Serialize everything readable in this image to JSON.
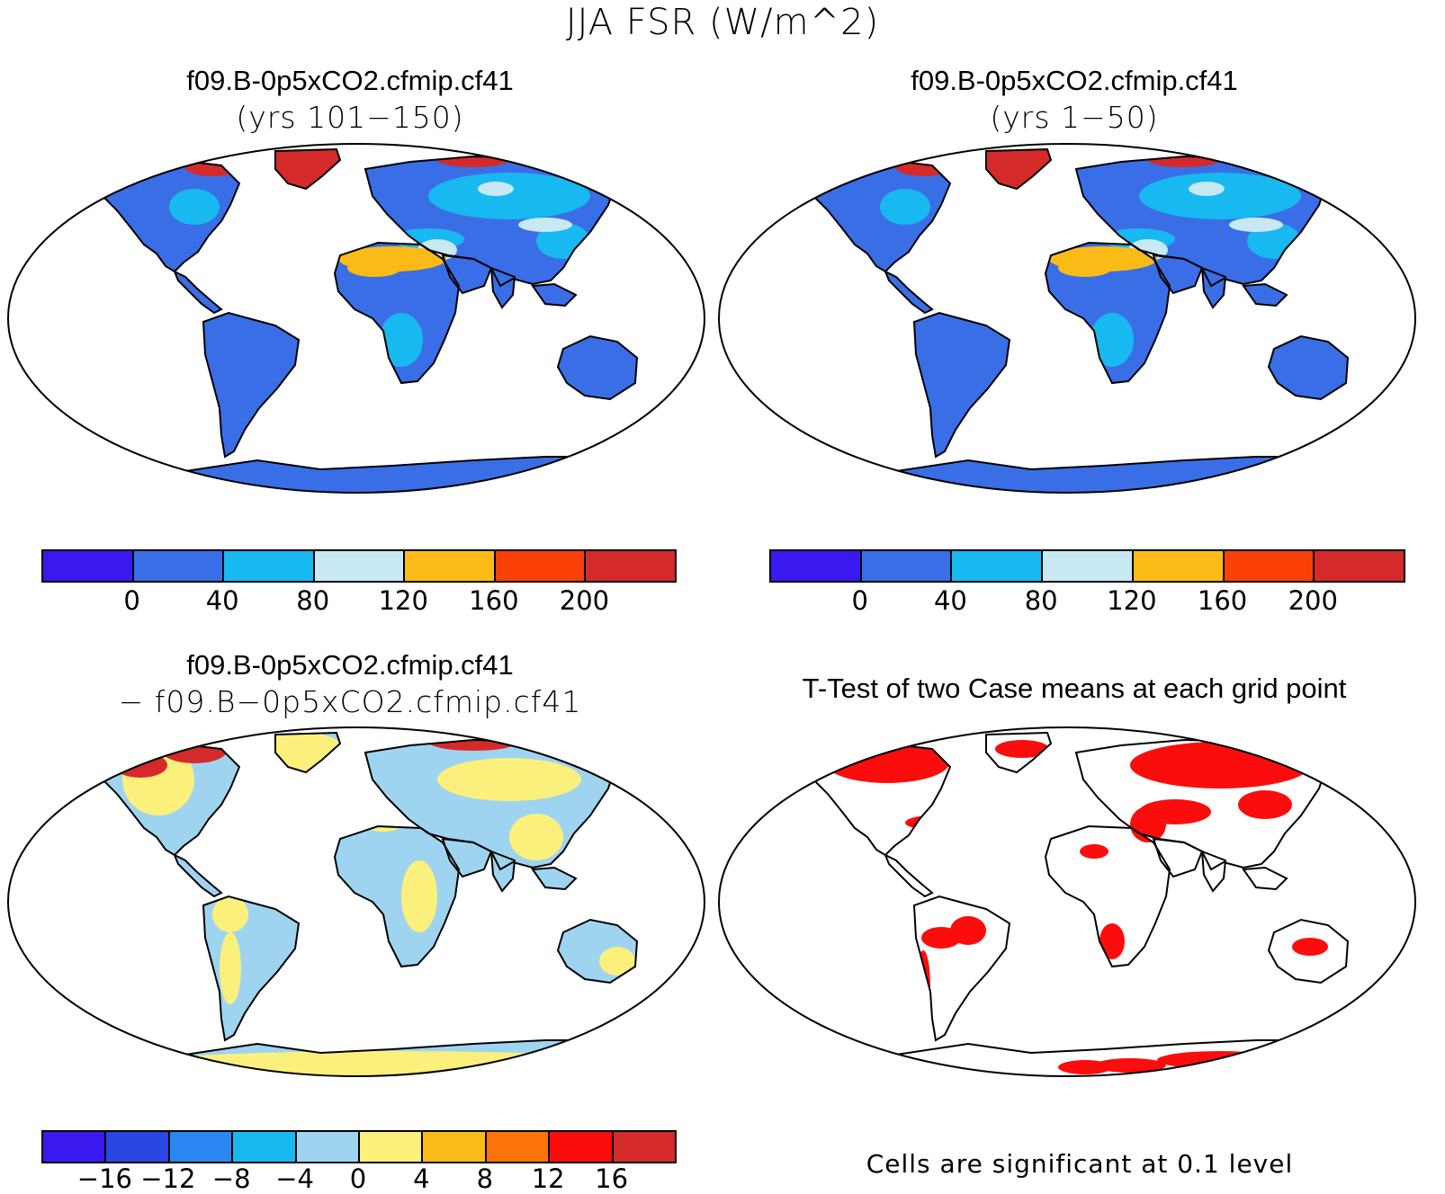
{
  "main_title": "JJA FSR (W/m^2)",
  "panels": [
    {
      "title": "f09.B-0p5xCO2.cfmip.cf41",
      "subtitle": "(yrs 101−150)",
      "kind": "field"
    },
    {
      "title": "f09.B-0p5xCO2.cfmip.cf41",
      "subtitle": "(yrs 1−50)",
      "kind": "field"
    },
    {
      "title": "f09.B-0p5xCO2.cfmip.cf41",
      "subtitle": "− f09.B−0p5xCO2.cfmip.cf41",
      "kind": "difference"
    },
    {
      "title": "T-Test of two Case means at each grid point",
      "subtitle": "",
      "kind": "ttest"
    }
  ],
  "colorbars": {
    "field": {
      "colors": [
        "#3a18f0",
        "#3a6ee6",
        "#18b8f0",
        "#c8e8f4",
        "#fbbb16",
        "#fb4008",
        "#d42a2a"
      ],
      "labels": [
        "0",
        "40",
        "80",
        "120",
        "160",
        "200"
      ]
    },
    "difference": {
      "colors": [
        "#3a18f0",
        "#2a46e2",
        "#2a86f0",
        "#18b8f0",
        "#9ed4f0",
        "#fcf07c",
        "#fbbb16",
        "#fb7408",
        "#fb0d0d",
        "#d42a2a"
      ],
      "labels": [
        "−16",
        "−12",
        "−8",
        "−4",
        "0",
        "4",
        "8",
        "12",
        "16"
      ]
    }
  },
  "significance_note": "Cells are significant at 0.1 level",
  "map_colors": {
    "field_land": "#3a6ee6",
    "field_desert": "#fbbb16",
    "field_mid": "#18b8f0",
    "field_light": "#c8e8f4",
    "field_high": "#d42a2a",
    "diff_positive": "#fcf07c",
    "diff_negative": "#9ed4f0",
    "diff_strong": "#d42a2a",
    "ttest_significant": "#fb0d0d",
    "coastline": "#000000"
  }
}
